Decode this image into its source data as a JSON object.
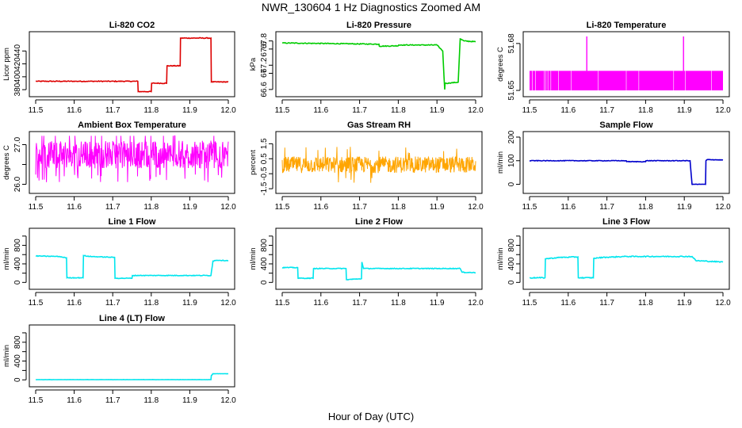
{
  "page": {
    "title": "NWR_130604  1 Hz Diagnostics Zoomed AM",
    "x_axis_title": "Hour of Day (UTC)"
  },
  "chart_data": [
    {
      "id": "co2",
      "type": "line",
      "title": "Li-820 CO2",
      "ylabel": "Licor ppm",
      "color": "#dd0000",
      "xlim": [
        11.5,
        12.0
      ],
      "xticks": [
        11.5,
        11.6,
        11.7,
        11.8,
        11.9,
        12.0
      ],
      "ylim": [
        374,
        465
      ],
      "yticks": [
        380,
        400,
        420,
        440
      ],
      "yticklabels": [
        "380",
        "400",
        "420",
        "440"
      ],
      "x": [
        11.5,
        11.765,
        11.766,
        11.8,
        11.801,
        11.84,
        11.841,
        11.875,
        11.876,
        11.955,
        11.956,
        12.0
      ],
      "y": [
        393,
        393,
        377,
        377,
        390,
        390,
        417,
        417,
        460,
        460,
        392,
        392
      ],
      "noise": 0.6
    },
    {
      "id": "pressure",
      "type": "line",
      "title": "Li-820 Pressure",
      "ylabel": "kPa",
      "color": "#00cc00",
      "xlim": [
        11.5,
        12.0
      ],
      "xticks": [
        11.5,
        11.6,
        11.7,
        11.8,
        11.9,
        12.0
      ],
      "ylim": [
        66.5,
        67.95
      ],
      "yticks": [
        66.6,
        67.0,
        67.2,
        67.6,
        67.8
      ],
      "yticklabels": [
        "66.6",
        "67",
        "67.2",
        "67.6",
        "67.8"
      ],
      "x": [
        11.5,
        11.75,
        11.751,
        11.8,
        11.801,
        11.9,
        11.915,
        11.92,
        11.921,
        11.955,
        11.956,
        11.96,
        11.97,
        12.0
      ],
      "y": [
        67.75,
        67.72,
        67.67,
        67.68,
        67.7,
        67.7,
        67.55,
        66.6,
        66.75,
        66.78,
        67.0,
        67.85,
        67.8,
        67.78
      ],
      "noise": 0.01
    },
    {
      "id": "temperature",
      "type": "line",
      "title": "Li-820 Temperature",
      "ylabel": "degrees C",
      "color": "#ff00ff",
      "xlim": [
        11.5,
        12.0
      ],
      "xticks": [
        11.5,
        11.6,
        11.7,
        11.8,
        11.9,
        12.0
      ],
      "ylim": [
        51.648,
        51.6855
      ],
      "yticks": [
        51.65,
        51.68
      ],
      "yticklabels": [
        "51.65",
        "51.68"
      ],
      "band": [
        51.65,
        51.6625
      ],
      "spikes": [
        {
          "x": 11.648,
          "y": 51.6845
        },
        {
          "x": 11.898,
          "y": 51.6845
        }
      ],
      "x": [
        11.5,
        12.0
      ],
      "y": [
        51.65,
        51.6625
      ]
    },
    {
      "id": "ambient",
      "type": "line",
      "title": "Ambient Box Temperature",
      "ylabel": "degrees C",
      "color": "#ff00ff",
      "xlim": [
        11.5,
        12.0
      ],
      "xticks": [
        11.5,
        11.6,
        11.7,
        11.8,
        11.9,
        12.0
      ],
      "ylim": [
        25.85,
        27.25
      ],
      "yticks": [
        26.0,
        26.5,
        27.0
      ],
      "yticklabels": [
        "26.0",
        "",
        "27.0"
      ],
      "center": 26.75,
      "spread": 0.35,
      "dips": 26.05,
      "x": [
        11.5,
        12.0
      ],
      "y": [
        26.75,
        26.75
      ]
    },
    {
      "id": "rh",
      "type": "line",
      "title": "Gas Stream RH",
      "ylabel": "percent",
      "color": "#ffa500",
      "xlim": [
        11.5,
        12.0
      ],
      "xticks": [
        11.5,
        11.6,
        11.7,
        11.8,
        11.9,
        12.0
      ],
      "ylim": [
        -1.6,
        2.1
      ],
      "yticks": [
        -1.5,
        -0.5,
        0.5,
        1.5
      ],
      "yticklabels": [
        "-1.5",
        "-0.5",
        "0.5",
        "1.5"
      ],
      "center": 0.1,
      "spread": 0.55,
      "x": [
        11.5,
        12.0
      ],
      "y": [
        0.1,
        0.1
      ]
    },
    {
      "id": "sample",
      "type": "line",
      "title": "Sample Flow",
      "ylabel": "ml/min",
      "color": "#0000cc",
      "xlim": [
        11.5,
        12.0
      ],
      "xticks": [
        11.5,
        11.6,
        11.7,
        11.8,
        11.9,
        12.0
      ],
      "ylim": [
        -25,
        210
      ],
      "yticks": [
        0,
        100,
        200
      ],
      "yticklabels": [
        "0",
        "100",
        "200"
      ],
      "x": [
        11.5,
        11.75,
        11.751,
        11.8,
        11.801,
        11.915,
        11.92,
        11.955,
        11.956,
        11.96,
        12.0
      ],
      "y": [
        100,
        100,
        96,
        96,
        100,
        100,
        0,
        0,
        100,
        105,
        103
      ],
      "noise": 1.2
    },
    {
      "id": "line1",
      "type": "line",
      "title": "Line 1 Flow",
      "ylabel": "ml/min",
      "color": "#00e5ee",
      "xlim": [
        11.5,
        12.0
      ],
      "xticks": [
        11.5,
        11.6,
        11.7,
        11.8,
        11.9,
        12.0
      ],
      "ylim": [
        -80,
        1100
      ],
      "yticks": [
        0,
        200,
        400,
        600,
        800,
        1000
      ],
      "yticklabels": [
        "0",
        "",
        "400",
        "",
        "800",
        ""
      ],
      "x": [
        11.5,
        11.56,
        11.58,
        11.581,
        11.623,
        11.624,
        11.64,
        11.705,
        11.706,
        11.75,
        11.751,
        11.955,
        11.96,
        11.97,
        12.0
      ],
      "y": [
        570,
        560,
        530,
        100,
        100,
        580,
        560,
        540,
        90,
        90,
        150,
        150,
        460,
        480,
        470
      ],
      "noise": 7
    },
    {
      "id": "line2",
      "type": "line",
      "title": "Line 2 Flow",
      "ylabel": "ml/min",
      "color": "#00e5ee",
      "xlim": [
        11.5,
        12.0
      ],
      "xticks": [
        11.5,
        11.6,
        11.7,
        11.8,
        11.9,
        12.0
      ],
      "ylim": [
        -80,
        1100
      ],
      "yticks": [
        0,
        200,
        400,
        600,
        800,
        1000
      ],
      "yticklabels": [
        "0",
        "",
        "400",
        "",
        "800",
        ""
      ],
      "x": [
        11.5,
        11.54,
        11.541,
        11.58,
        11.581,
        11.665,
        11.666,
        11.705,
        11.706,
        11.71,
        11.96,
        11.965,
        12.0
      ],
      "y": [
        320,
        320,
        90,
        90,
        300,
        300,
        60,
        80,
        440,
        300,
        300,
        220,
        210
      ],
      "noise": 8
    },
    {
      "id": "line3",
      "type": "line",
      "title": "Line 3 Flow",
      "ylabel": "ml/min",
      "color": "#00e5ee",
      "xlim": [
        11.5,
        12.0
      ],
      "xticks": [
        11.5,
        11.6,
        11.7,
        11.8,
        11.9,
        12.0
      ],
      "ylim": [
        -80,
        1100
      ],
      "yticks": [
        0,
        200,
        400,
        600,
        800,
        1000
      ],
      "yticklabels": [
        "0",
        "",
        "400",
        "",
        "800",
        ""
      ],
      "x": [
        11.5,
        11.54,
        11.541,
        11.58,
        11.625,
        11.626,
        11.665,
        11.666,
        11.69,
        11.75,
        11.92,
        11.93,
        12.0
      ],
      "y": [
        100,
        100,
        510,
        540,
        550,
        100,
        100,
        520,
        540,
        560,
        560,
        470,
        440
      ],
      "noise": 10
    },
    {
      "id": "line4",
      "type": "line",
      "title": "Line 4 (LT) Flow",
      "ylabel": "ml/min",
      "color": "#00e5ee",
      "xlim": [
        11.5,
        12.0
      ],
      "xticks": [
        11.5,
        11.6,
        11.7,
        11.8,
        11.9,
        12.0
      ],
      "ylim": [
        -80,
        1100
      ],
      "yticks": [
        0,
        200,
        400,
        600,
        800,
        1000
      ],
      "yticklabels": [
        "0",
        "",
        "400",
        "",
        "800",
        ""
      ],
      "x": [
        11.5,
        11.955,
        11.956,
        11.96,
        12.0
      ],
      "y": [
        5,
        5,
        90,
        130,
        130
      ],
      "noise": 2
    }
  ]
}
